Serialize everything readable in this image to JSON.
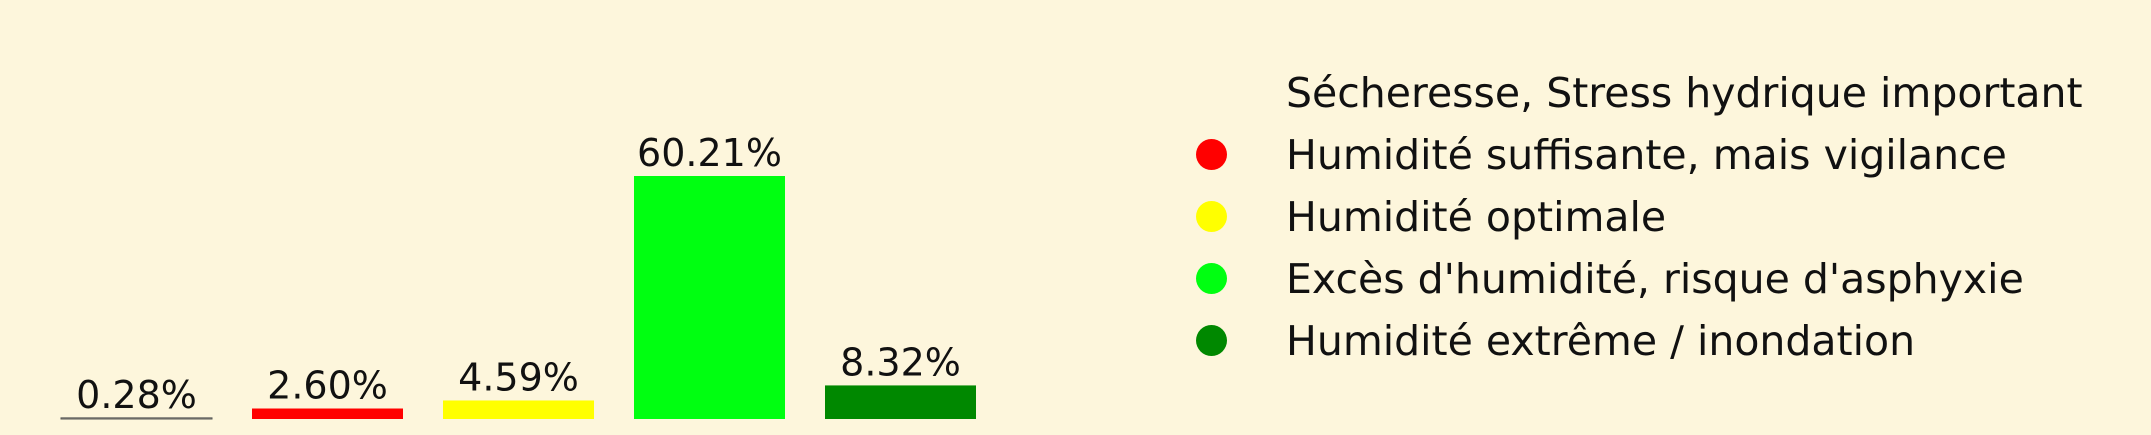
{
  "chart_data": {
    "type": "bar",
    "categories": [
      "Sécheresse, Stress hydrique important",
      "Humidité suffisante, mais vigilance",
      "Humidité optimale",
      "Excès d'humidité, risque d'asphyxie",
      "Humidité extrême / inondation"
    ],
    "values": [
      0.28,
      2.6,
      4.59,
      60.21,
      8.32
    ],
    "value_labels": [
      "0.28%",
      "2.60%",
      "4.59%",
      "60.21%",
      "8.32%"
    ],
    "colors": [
      "#fdf6dc",
      "#ff0000",
      "#ffff00",
      "#00ff11",
      "#008800"
    ],
    "ylim": [
      0,
      60.21
    ],
    "grid": false,
    "legend_position": "right"
  }
}
